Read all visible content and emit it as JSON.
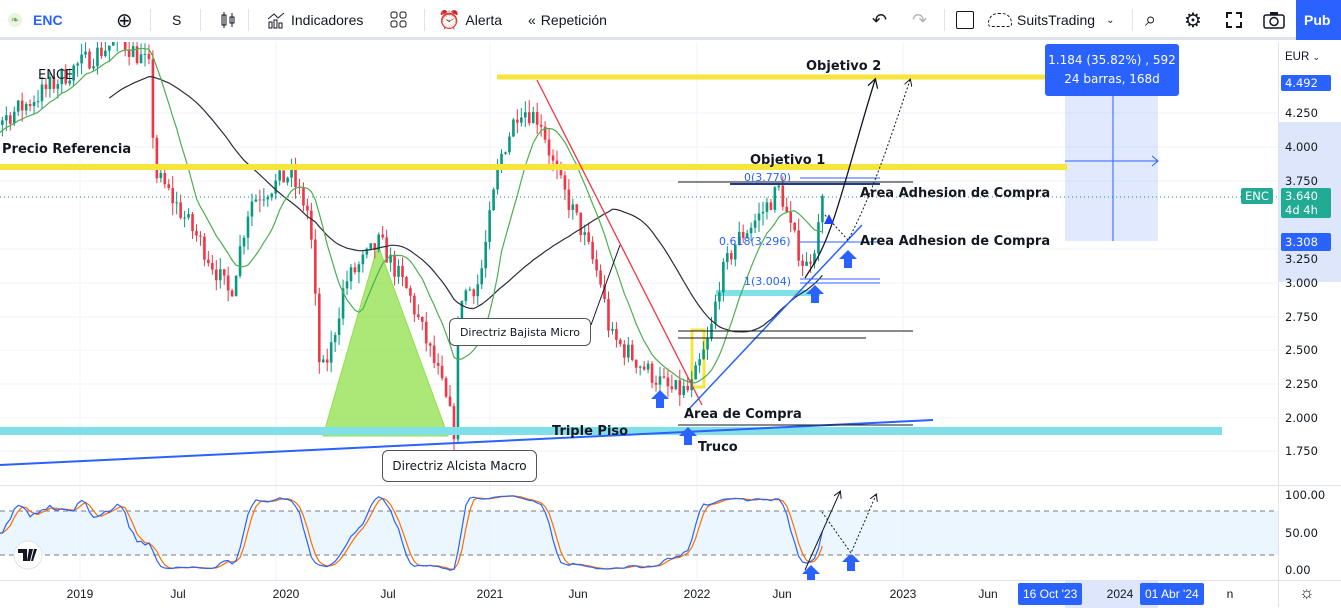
{
  "toolbar": {
    "symbol": "ENC",
    "interval": "S",
    "indicators_label": "Indicadores",
    "alert_label": "Alerta",
    "replay_label": "Repetición",
    "layout_name": "SuitsTrading",
    "publish_label": "Pub"
  },
  "chart": {
    "symbol_label": "ENCE",
    "currency": "EUR",
    "price_ticks": [
      "4.250",
      "4.000",
      "3.750",
      "3.000",
      "2.750",
      "2.500",
      "2.250",
      "2.000",
      "1.750"
    ],
    "partial_tick": "3.250",
    "target_price_badge": "4.492",
    "stop_price_badge": "3.308",
    "last_price": "3.640",
    "last_price_symbol": "ENC",
    "countdown": "4d 4h",
    "time_ticks": [
      "2019",
      "Jul",
      "2020",
      "Jul",
      "2021",
      "Jun",
      "2022",
      "Jun",
      "2023",
      "Jun"
    ],
    "time_tick_partial": "2024",
    "time_tick_partial2": "n",
    "range_start": "16 Oct '23",
    "range_end": "01 Abr '24",
    "measure": {
      "line1": "1.184 (35.82%) , 592",
      "line2": "24 barras, 168d"
    },
    "annotations": {
      "precio_referencia": "Precio Referencia",
      "objetivo1": "Objetivo 1",
      "objetivo2": "Objetivo 2",
      "adhesion1": "Area Adhesion de Compra",
      "adhesion2": "Area Adhesion de Compra",
      "area_compra": "Area de Compra",
      "triple_piso": "Triple Piso",
      "truco": "Truco",
      "directriz_bajista": "Directriz Bajista Micro",
      "directriz_alcista": "Directriz Alcista Macro"
    },
    "fib": {
      "f0": "0(3.770)",
      "f618": "0.618(3.296)",
      "f1": "1(3.004)"
    },
    "oscillator_ticks": [
      "100.00",
      "50.00",
      "0.00"
    ],
    "colors": {
      "up": "#089981",
      "down": "#f23645",
      "accent": "#2962ff",
      "yellow": "#f7e53b",
      "cyan": "#7fe0ea",
      "ma_long": "#2a2e39",
      "ma_short": "#4caf50",
      "stoch_k": "#2962ff",
      "stoch_d": "#ff6d00"
    }
  },
  "chart_data": {
    "type": "candlestick",
    "price_path": [
      [
        "2018-06-01",
        4.0
      ],
      [
        "2018-10-01",
        4.3
      ],
      [
        "2019-01-05",
        4.6
      ],
      [
        "2019-03-20",
        4.8
      ],
      [
        "2019-05-10",
        4.6
      ],
      [
        "2019-05-22",
        3.8
      ],
      [
        "2019-06-09",
        3.7
      ],
      [
        "2019-08-10",
        3.3
      ],
      [
        "2019-10-02",
        2.9
      ],
      [
        "2019-11-07",
        3.6
      ],
      [
        "2020-01-17",
        3.8
      ],
      [
        "2020-02-21",
        3.5
      ],
      [
        "2020-03-10",
        2.3
      ],
      [
        "2020-03-28",
        2.5
      ],
      [
        "2020-04-23",
        3.0
      ],
      [
        "2020-06-24",
        3.3
      ],
      [
        "2020-08-16",
        2.9
      ],
      [
        "2020-10-08",
        2.3
      ],
      [
        "2020-11-04",
        1.9
      ],
      [
        "2020-11-13",
        2.9
      ],
      [
        "2020-12-18",
        3.0
      ],
      [
        "2021-01-23",
        3.9
      ],
      [
        "2021-02-28",
        4.3
      ],
      [
        "2021-04-05",
        4.2
      ],
      [
        "2021-05-01",
        3.8
      ],
      [
        "2021-06-15",
        3.4
      ],
      [
        "2021-07-20",
        3.0
      ],
      [
        "2021-08-07",
        2.6
      ],
      [
        "2021-09-29",
        2.4
      ],
      [
        "2021-11-21",
        2.2
      ],
      [
        "2021-12-26",
        2.2
      ],
      [
        "2022-01-13",
        2.4
      ],
      [
        "2022-01-31",
        2.6
      ],
      [
        "2022-02-17",
        3.0
      ],
      [
        "2022-03-16",
        3.3
      ],
      [
        "2022-04-29",
        3.5
      ],
      [
        "2022-06-03",
        3.7
      ],
      [
        "2022-06-21",
        3.4
      ],
      [
        "2022-07-18",
        3.1
      ],
      [
        "2022-08-05",
        3.3
      ],
      [
        "2022-08-23",
        3.64
      ]
    ],
    "levels": {
      "precio_referencia": 3.85,
      "objetivo2": 4.49,
      "triple_piso": 1.9
    },
    "oscillator_bands": [
      20,
      80
    ],
    "yrange": [
      1.6,
      4.8
    ]
  }
}
